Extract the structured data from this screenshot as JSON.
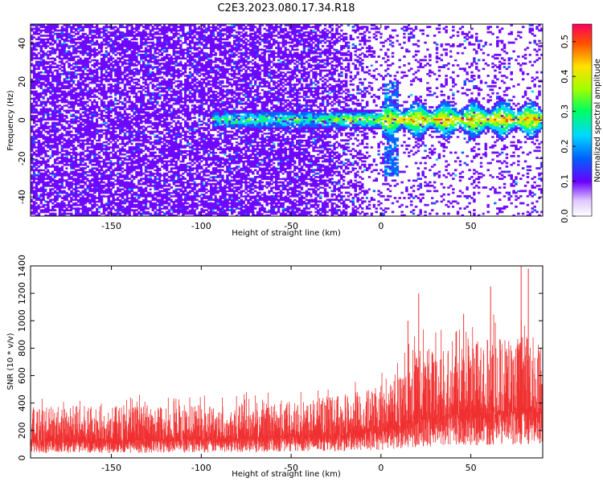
{
  "title": "C2E3.2023.080.17.34.R18",
  "chart_data": [
    {
      "type": "heatmap",
      "xlabel": "Height of straight line (km)",
      "ylabel": "Frequency (Hz)",
      "xlim": [
        -195,
        90
      ],
      "ylim": [
        -50,
        50
      ],
      "xticks": [
        -150,
        -100,
        -50,
        0,
        50
      ],
      "yticks": [
        -40,
        -20,
        0,
        20,
        40
      ],
      "grid": false,
      "colorbar": {
        "label": "Normalized spectral amplitude",
        "range": [
          0.0,
          0.55
        ],
        "ticks": [
          "0.0",
          "0.1",
          "0.2",
          "0.3",
          "0.4",
          "0.5"
        ],
        "colors": [
          "#ffffff",
          "#6a00ff",
          "#0060ff",
          "#00d8ff",
          "#00ff60",
          "#a0ff00",
          "#ffe000",
          "#ff5000",
          "#ff0060"
        ]
      },
      "bands": [
        {
          "x_start": -195,
          "x_end": -30,
          "freq_spread": 50,
          "amplitude": 0.08,
          "description_free": true
        },
        {
          "x_start": -95,
          "x_end": 90,
          "freq_center": 0,
          "freq_half_width": 7,
          "amplitude": 0.25
        }
      ]
    },
    {
      "type": "area",
      "xlabel": "Height of straight line (km)",
      "ylabel": "SNR (10 * v/v)",
      "xlim": [
        -195,
        90
      ],
      "ylim": [
        0,
        1400
      ],
      "xticks": [
        -150,
        -100,
        -50,
        0,
        50
      ],
      "yticks": [
        0,
        200,
        400,
        600,
        800,
        1000,
        1200,
        1400
      ],
      "grid": false,
      "color": "#f03030",
      "envelope": {
        "x": [
          -195,
          -150,
          -100,
          -50,
          -25,
          0,
          10,
          20,
          30,
          40,
          50,
          60,
          70,
          80,
          90
        ],
        "baseline": [
          120,
          120,
          130,
          150,
          160,
          190,
          230,
          260,
          280,
          300,
          300,
          310,
          320,
          330,
          330
        ],
        "typical_peak": [
          380,
          380,
          390,
          420,
          450,
          520,
          640,
          780,
          820,
          840,
          870,
          880,
          900,
          900,
          880
        ]
      },
      "spikes": [
        {
          "x": 15,
          "y": 1000
        },
        {
          "x": 21,
          "y": 1200
        },
        {
          "x": 46,
          "y": 1050
        },
        {
          "x": 61,
          "y": 1250
        },
        {
          "x": 78,
          "y": 1400
        },
        {
          "x": 82,
          "y": 1380
        }
      ]
    }
  ]
}
